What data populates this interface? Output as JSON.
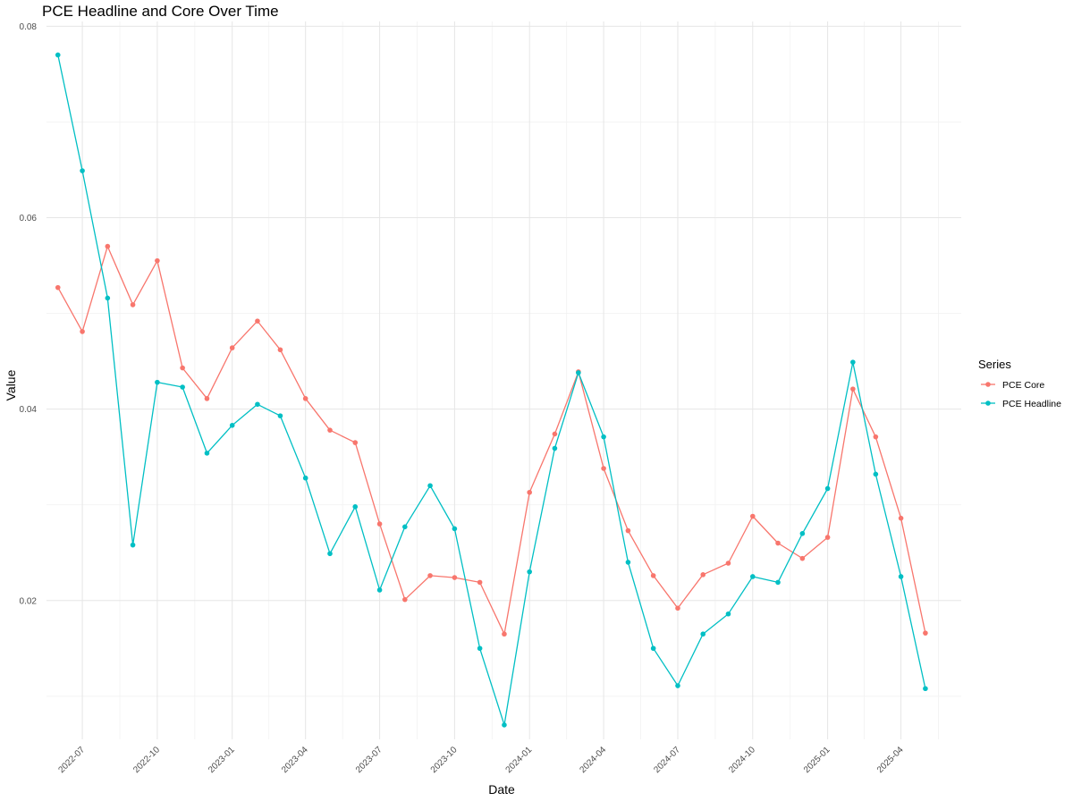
{
  "chart_data": {
    "type": "line",
    "title": "PCE Headline and Core Over Time",
    "xlabel": "Date",
    "ylabel": "Value",
    "ylim": [
      0.0055,
      0.0805
    ],
    "xlim": [
      "2022-05-18",
      "2025-06-14"
    ],
    "y_ticks": [
      0.02,
      0.04,
      0.06,
      0.08
    ],
    "y_tick_labels": [
      "0.02",
      "0.04",
      "0.06",
      "0.08"
    ],
    "x_ticks": [
      "2022-07-01",
      "2022-10-01",
      "2023-01-01",
      "2023-04-01",
      "2023-07-01",
      "2023-10-01",
      "2024-01-01",
      "2024-04-01",
      "2024-07-01",
      "2024-10-01",
      "2025-01-01",
      "2025-04-01"
    ],
    "x_tick_labels": [
      "2022-07",
      "2022-10",
      "2023-01",
      "2023-04",
      "2023-07",
      "2023-10",
      "2024-01",
      "2024-04",
      "2024-07",
      "2024-10",
      "2025-01",
      "2025-04"
    ],
    "grid": true,
    "legend": {
      "title": "Series",
      "position": "right"
    },
    "x": [
      "2022-06-01",
      "2022-07-01",
      "2022-08-01",
      "2022-09-01",
      "2022-10-01",
      "2022-11-01",
      "2022-12-01",
      "2023-01-01",
      "2023-02-01",
      "2023-03-01",
      "2023-04-01",
      "2023-05-01",
      "2023-06-01",
      "2023-07-01",
      "2023-08-01",
      "2023-09-01",
      "2023-10-01",
      "2023-11-01",
      "2023-12-01",
      "2024-01-01",
      "2024-02-01",
      "2024-03-01",
      "2024-04-01",
      "2024-05-01",
      "2024-06-01",
      "2024-07-01",
      "2024-08-01",
      "2024-09-01",
      "2024-10-01",
      "2024-11-01",
      "2024-12-01",
      "2025-01-01",
      "2025-02-01",
      "2025-03-01",
      "2025-04-01",
      "2025-05-01"
    ],
    "series": [
      {
        "name": "PCE Core",
        "color": "#F8766D",
        "values": [
          0.0527,
          0.0481,
          0.057,
          0.0509,
          0.0555,
          0.0443,
          0.0411,
          0.0464,
          0.0492,
          0.0462,
          0.0411,
          0.0378,
          0.0365,
          0.028,
          0.0201,
          0.0226,
          0.0224,
          0.0219,
          0.0165,
          0.0313,
          0.0374,
          0.0439,
          0.0338,
          0.0273,
          0.0226,
          0.0192,
          0.0227,
          0.0239,
          0.0288,
          0.026,
          0.0244,
          0.0266,
          0.0421,
          0.0371,
          0.0286,
          0.0166
        ]
      },
      {
        "name": "PCE Headline",
        "color": "#00BFC4",
        "values": [
          0.077,
          0.0649,
          0.0516,
          0.0258,
          0.0428,
          0.0423,
          0.0354,
          0.0383,
          0.0405,
          0.0393,
          0.0328,
          0.0249,
          0.0298,
          0.0211,
          0.0277,
          0.032,
          0.0275,
          0.015,
          0.007,
          0.023,
          0.0359,
          0.0438,
          0.0371,
          0.024,
          0.015,
          0.0111,
          0.0165,
          0.0186,
          0.0225,
          0.0219,
          0.027,
          0.0317,
          0.0449,
          0.0332,
          0.0225,
          0.0108
        ]
      }
    ]
  }
}
